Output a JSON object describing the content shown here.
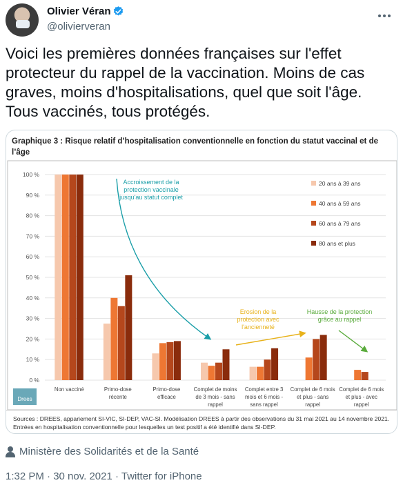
{
  "user": {
    "display_name": "Olivier Véran",
    "handle": "@olivierveran",
    "verified": true
  },
  "tweet": {
    "text_lines": [
      "Voici les premières données françaises sur l'effet",
      "protecteur du rappel de la vaccination. Moins de cas",
      "graves, moins d'hospitalisations, quel que soit l'âge.",
      "Tous vaccinés, tous protégés."
    ]
  },
  "media": {
    "title_lines": [
      "Graphique 3 : Risque relatif d’hospitalisation conventionnelle en fonction du statut vaccinal et de",
      "l’âge"
    ],
    "sources_lines": [
      "Sources : DREES, appariement SI-VIC, SI-DEP, VAC-SI. Modélisation DREES à partir des observations du 31 mai 2021 au 14 novembre 2021.",
      "Entrées en hospitalisation conventionnelle pour lesquelles un test positif a été identifié dans SI-DEP."
    ],
    "logo_text": "Drees"
  },
  "chart_data": {
    "type": "bar",
    "title": "Graphique 3 : Risque relatif d’hospitalisation conventionnelle en fonction du statut vaccinal et de l’âge",
    "ylim": [
      0,
      100
    ],
    "y_ticks": [
      "0 %",
      "10 %",
      "20 %",
      "30 %",
      "40 %",
      "50 %",
      "60 %",
      "70 %",
      "80 %",
      "90 %",
      "100 %"
    ],
    "grid": true,
    "legend_position": "top-right",
    "categories": [
      [
        "Non vacciné"
      ],
      [
        "Primo-dose",
        "récente"
      ],
      [
        "Primo-dose",
        "efficace"
      ],
      [
        "Complet de moins",
        "de 3 mois - sans",
        "rappel"
      ],
      [
        "Complet entre 3",
        "mois et 6 mois -",
        "sans rappel"
      ],
      [
        "Complet de 6 mois",
        "et plus - sans",
        "rappel"
      ],
      [
        "Complet de 6 mois",
        "et plus - avec",
        "rappel"
      ]
    ],
    "series": [
      {
        "name": "20 ans à 39 ans",
        "color": "#f6c8ad",
        "values": [
          100,
          27.5,
          13,
          8.5,
          6.5,
          null,
          null
        ]
      },
      {
        "name": "40 ans à 59 ans",
        "color": "#ee7733",
        "values": [
          100,
          40,
          18,
          7,
          6.5,
          11,
          5
        ]
      },
      {
        "name": "60 ans à 79 ans",
        "color": "#b5471c",
        "values": [
          100,
          36,
          18.5,
          8.5,
          10,
          20,
          4
        ]
      },
      {
        "name": "80 ans et plus",
        "color": "#8a2c0c",
        "values": [
          100,
          51,
          19,
          15,
          15.5,
          22,
          null
        ]
      }
    ],
    "annotations": [
      {
        "lines": [
          "Accroissement de la",
          "protection vaccinale",
          "jusqu'au statut complet"
        ],
        "color": "#1a9ea8"
      },
      {
        "lines": [
          "Erosion de la",
          "protection avec",
          "l'ancienneté"
        ],
        "color": "#e8b21a"
      },
      {
        "lines": [
          "Hausse de la protection",
          "grâce au rappel"
        ],
        "color": "#5aab3c"
      }
    ]
  },
  "attribution": {
    "text": "Ministère des Solidarités et de la Santé"
  },
  "meta": {
    "timestamp": "1:32 PM · 30 nov. 2021 · Twitter for iPhone"
  }
}
